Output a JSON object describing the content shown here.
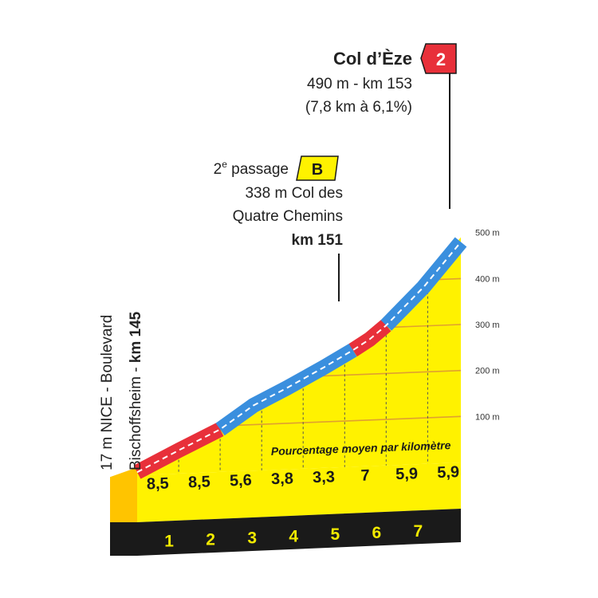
{
  "chart_data": {
    "type": "area",
    "title": "",
    "xlabel": "",
    "ylabel": "",
    "x_unit": "km",
    "ylim": [
      0,
      500
    ],
    "y_ticks": [
      100,
      200,
      300,
      400,
      500
    ],
    "y_tick_labels": [
      "100 m",
      "200 m",
      "300 m",
      "400 m",
      "500 m"
    ],
    "x_km_labels": [
      "1",
      "2",
      "3",
      "4",
      "5",
      "6",
      "7"
    ],
    "profile": [
      {
        "x": 0,
        "y": 17
      },
      {
        "x": 1,
        "y": 61
      },
      {
        "x": 2,
        "y": 103
      },
      {
        "x": 2.8,
        "y": 152
      },
      {
        "x": 3.6,
        "y": 187
      },
      {
        "x": 4.5,
        "y": 229
      },
      {
        "x": 5.2,
        "y": 264
      },
      {
        "x": 5.6,
        "y": 286
      },
      {
        "x": 6.0,
        "y": 315
      },
      {
        "x": 6.9,
        "y": 395
      },
      {
        "x": 7.8,
        "y": 490
      }
    ],
    "route_segments": [
      {
        "from": 0,
        "to": 2,
        "color": "#e8303a"
      },
      {
        "from": 2,
        "to": 5.2,
        "color": "#3a8fde"
      },
      {
        "from": 5.2,
        "to": 6.0,
        "color": "#e8303a"
      },
      {
        "from": 6.0,
        "to": 7.8,
        "color": "#3a8fde"
      }
    ],
    "km_gradients": [
      "8,5",
      "8,5",
      "5,6",
      "3,8",
      "3,3",
      "7",
      "5,9",
      "5,9"
    ],
    "gradient_caption": "Pourcentage moyen par kilomètre",
    "start": {
      "line1": "17 m NICE - Boulevard",
      "line2_prefix": "Bischoffsheim - ",
      "line2_km": "km 145"
    },
    "summit": {
      "name": "Col d’Èze",
      "line2": "490 m - km 153",
      "line3": "(7,8 km à 6,1%)",
      "flag": "2"
    },
    "bonus": {
      "line1_prefix": "2",
      "line1_sup": "e",
      "line1_suffix": " passage",
      "flag": "B",
      "line2": "338 m Col des",
      "line3": "Quatre Chemins",
      "line4": "km 151"
    },
    "colors": {
      "fill": "#fff200",
      "dark_band": "#1a1a1a",
      "red": "#e8303a",
      "blue": "#3a8fde",
      "grid": "#e0a030",
      "side": "#ffc400",
      "bonus_flag": "#fff200"
    }
  }
}
